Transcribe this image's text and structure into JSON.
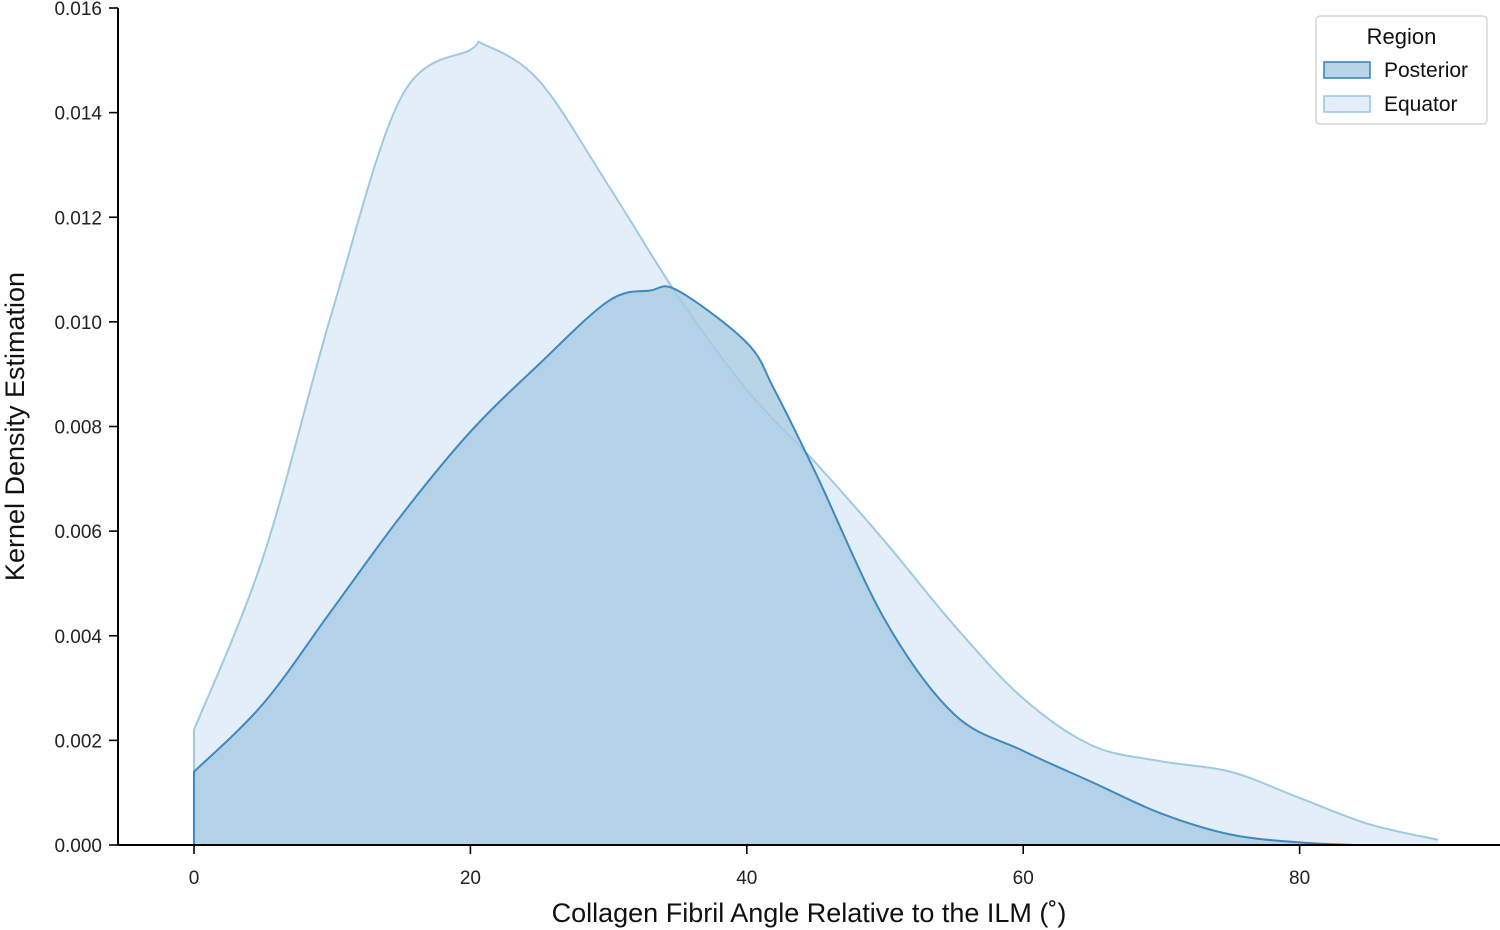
{
  "chart_data": {
    "type": "area",
    "title": "",
    "xlabel": "Collagen Fibril Angle Relative to the ILM (˚)",
    "ylabel": "Kernel Density Estimation",
    "xlim": [
      -5.5,
      94.5
    ],
    "ylim": [
      0,
      0.016
    ],
    "xticks": [
      0,
      20,
      40,
      60,
      80
    ],
    "xtick_labels": [
      "0",
      "20",
      "40",
      "60",
      "80"
    ],
    "yticks": [
      0,
      0.002,
      0.004,
      0.006,
      0.008,
      0.01,
      0.012,
      0.014,
      0.016
    ],
    "ytick_labels": [
      "0.000",
      "0.002",
      "0.004",
      "0.006",
      "0.008",
      "0.010",
      "0.012",
      "0.014",
      "0.016"
    ],
    "grid": false,
    "legend": {
      "title": "Region",
      "placement": "top-right",
      "entries": [
        "Posterior",
        "Equator"
      ]
    },
    "series": [
      {
        "name": "Equator",
        "fill_color": "#deebf7",
        "fill_opacity": 0.85,
        "line_color": "#9ecae1",
        "x": [
          0,
          5,
          10,
          15,
          20,
          21,
          25,
          30,
          35,
          40,
          45,
          50,
          55,
          60,
          65,
          70,
          75,
          80,
          85,
          90
        ],
        "y": [
          0.0022,
          0.0055,
          0.0102,
          0.0143,
          0.0152,
          0.0153,
          0.0146,
          0.0126,
          0.0105,
          0.0087,
          0.0073,
          0.0058,
          0.0042,
          0.0028,
          0.0019,
          0.0016,
          0.0014,
          0.0009,
          0.0004,
          0.0001
        ]
      },
      {
        "name": "Posterior",
        "fill_color": "#a6cbe2",
        "fill_opacity": 0.8,
        "line_color": "#3f88c0",
        "x": [
          0,
          5,
          10,
          15,
          20,
          25,
          30,
          33,
          35,
          40,
          42,
          45,
          50,
          55,
          60,
          65,
          70,
          75,
          80,
          84
        ],
        "y": [
          0.0014,
          0.0027,
          0.0045,
          0.0063,
          0.0079,
          0.0092,
          0.0104,
          0.0106,
          0.0106,
          0.0096,
          0.0087,
          0.0071,
          0.0043,
          0.0025,
          0.0018,
          0.0012,
          0.0006,
          0.0002,
          5e-05,
          0.0
        ]
      }
    ]
  }
}
